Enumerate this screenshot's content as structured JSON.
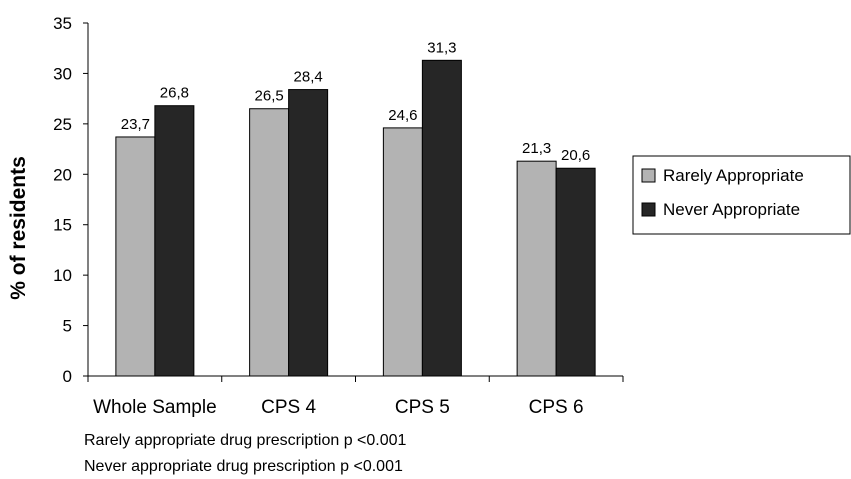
{
  "chart_data": {
    "type": "bar",
    "categories": [
      "Whole Sample",
      "CPS 4",
      "CPS 5",
      "CPS 6"
    ],
    "series": [
      {
        "name": "Rarely Appropriate",
        "values": [
          23.7,
          26.5,
          24.6,
          21.3
        ],
        "labels": [
          "23,7",
          "26,5",
          "24,6",
          "21,3"
        ],
        "color": "#b3b3b3"
      },
      {
        "name": "Never Appropriate",
        "values": [
          26.8,
          28.4,
          31.3,
          20.6
        ],
        "labels": [
          "26,8",
          "28,4",
          "31,3",
          "20,6"
        ],
        "color": "#262626"
      }
    ],
    "ylabel": "% of residents",
    "xlabel": "",
    "ylim": [
      0,
      35
    ],
    "yticks": [
      0,
      5,
      10,
      15,
      20,
      25,
      30,
      35
    ],
    "grid": false,
    "legend_position": "right"
  },
  "notes": [
    "Rarely appropriate drug prescription p <0.001",
    "Never appropriate drug prescription p <0.001"
  ]
}
